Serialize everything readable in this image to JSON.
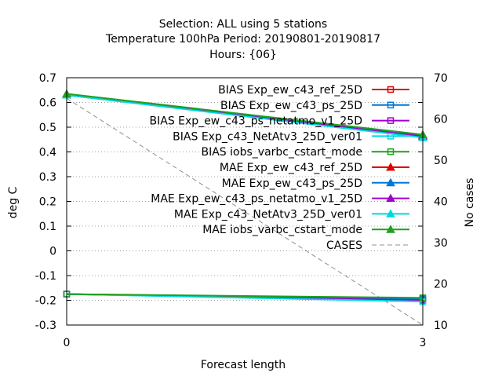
{
  "chart_data": {
    "type": "line",
    "title_lines": [
      "Selection: ALL using     5 stations",
      "Temperature 100hPa   Period: 20190801-20190817",
      "Hours: {06}"
    ],
    "xlabel": "Forecast length",
    "ylabel": "deg C",
    "y2label": "No cases",
    "x": [
      0,
      3
    ],
    "x_ticks": [
      "0",
      "3"
    ],
    "xlim": [
      0,
      3
    ],
    "ylim": [
      -0.3,
      0.7
    ],
    "y_ticks": [
      "0.7",
      "0.6",
      "0.5",
      "0.4",
      "0.3",
      "0.2",
      "0.1",
      "0",
      "-0.1",
      "-0.2",
      "-0.3"
    ],
    "y2lim": [
      10,
      70
    ],
    "y2_ticks": [
      "70",
      "60",
      "50",
      "40",
      "30",
      "20",
      "10"
    ],
    "grid": true,
    "legend_position": "top-right",
    "series": [
      {
        "name": "BIAS Exp_ew_c43_ref_25D",
        "values": [
          -0.175,
          -0.195
        ],
        "color": "#e00000",
        "marker": "square",
        "axis": "y1"
      },
      {
        "name": "BIAS Exp_ew_c43_ps_25D",
        "values": [
          -0.175,
          -0.195
        ],
        "color": "#0078d8",
        "marker": "square",
        "axis": "y1"
      },
      {
        "name": "BIAS Exp_ew_c43_ps_netatmo_v1_25D",
        "values": [
          -0.175,
          -0.2
        ],
        "color": "#a000d0",
        "marker": "square",
        "axis": "y1"
      },
      {
        "name": "BIAS Exp_c43_NetAtv3_25D_ver01",
        "values": [
          -0.175,
          -0.205
        ],
        "color": "#00d8e0",
        "marker": "square",
        "axis": "y1"
      },
      {
        "name": "BIAS iobs_varbc_cstart_mode",
        "values": [
          -0.175,
          -0.19
        ],
        "color": "#20a020",
        "marker": "square",
        "axis": "y1"
      },
      {
        "name": "MAE Exp_ew_c43_ref_25D",
        "values": [
          0.63,
          0.468
        ],
        "color": "#e00000",
        "marker": "triangle",
        "axis": "y1"
      },
      {
        "name": "MAE Exp_ew_c43_ps_25D",
        "values": [
          0.63,
          0.465
        ],
        "color": "#0078d8",
        "marker": "triangle",
        "axis": "y1"
      },
      {
        "name": "MAE Exp_ew_c43_ps_netatmo_v1_25D",
        "values": [
          0.63,
          0.463
        ],
        "color": "#a000d0",
        "marker": "triangle",
        "axis": "y1"
      },
      {
        "name": "MAE Exp_c43_NetAtv3_25D_ver01",
        "values": [
          0.63,
          0.458
        ],
        "color": "#00d8e0",
        "marker": "triangle",
        "axis": "y1"
      },
      {
        "name": "MAE iobs_varbc_cstart_mode",
        "values": [
          0.635,
          0.47
        ],
        "color": "#20a020",
        "marker": "triangle",
        "axis": "y1"
      },
      {
        "name": "CASES",
        "values": [
          65,
          10
        ],
        "color": "#909090",
        "marker": "none",
        "dashed": true,
        "axis": "y2"
      }
    ]
  }
}
